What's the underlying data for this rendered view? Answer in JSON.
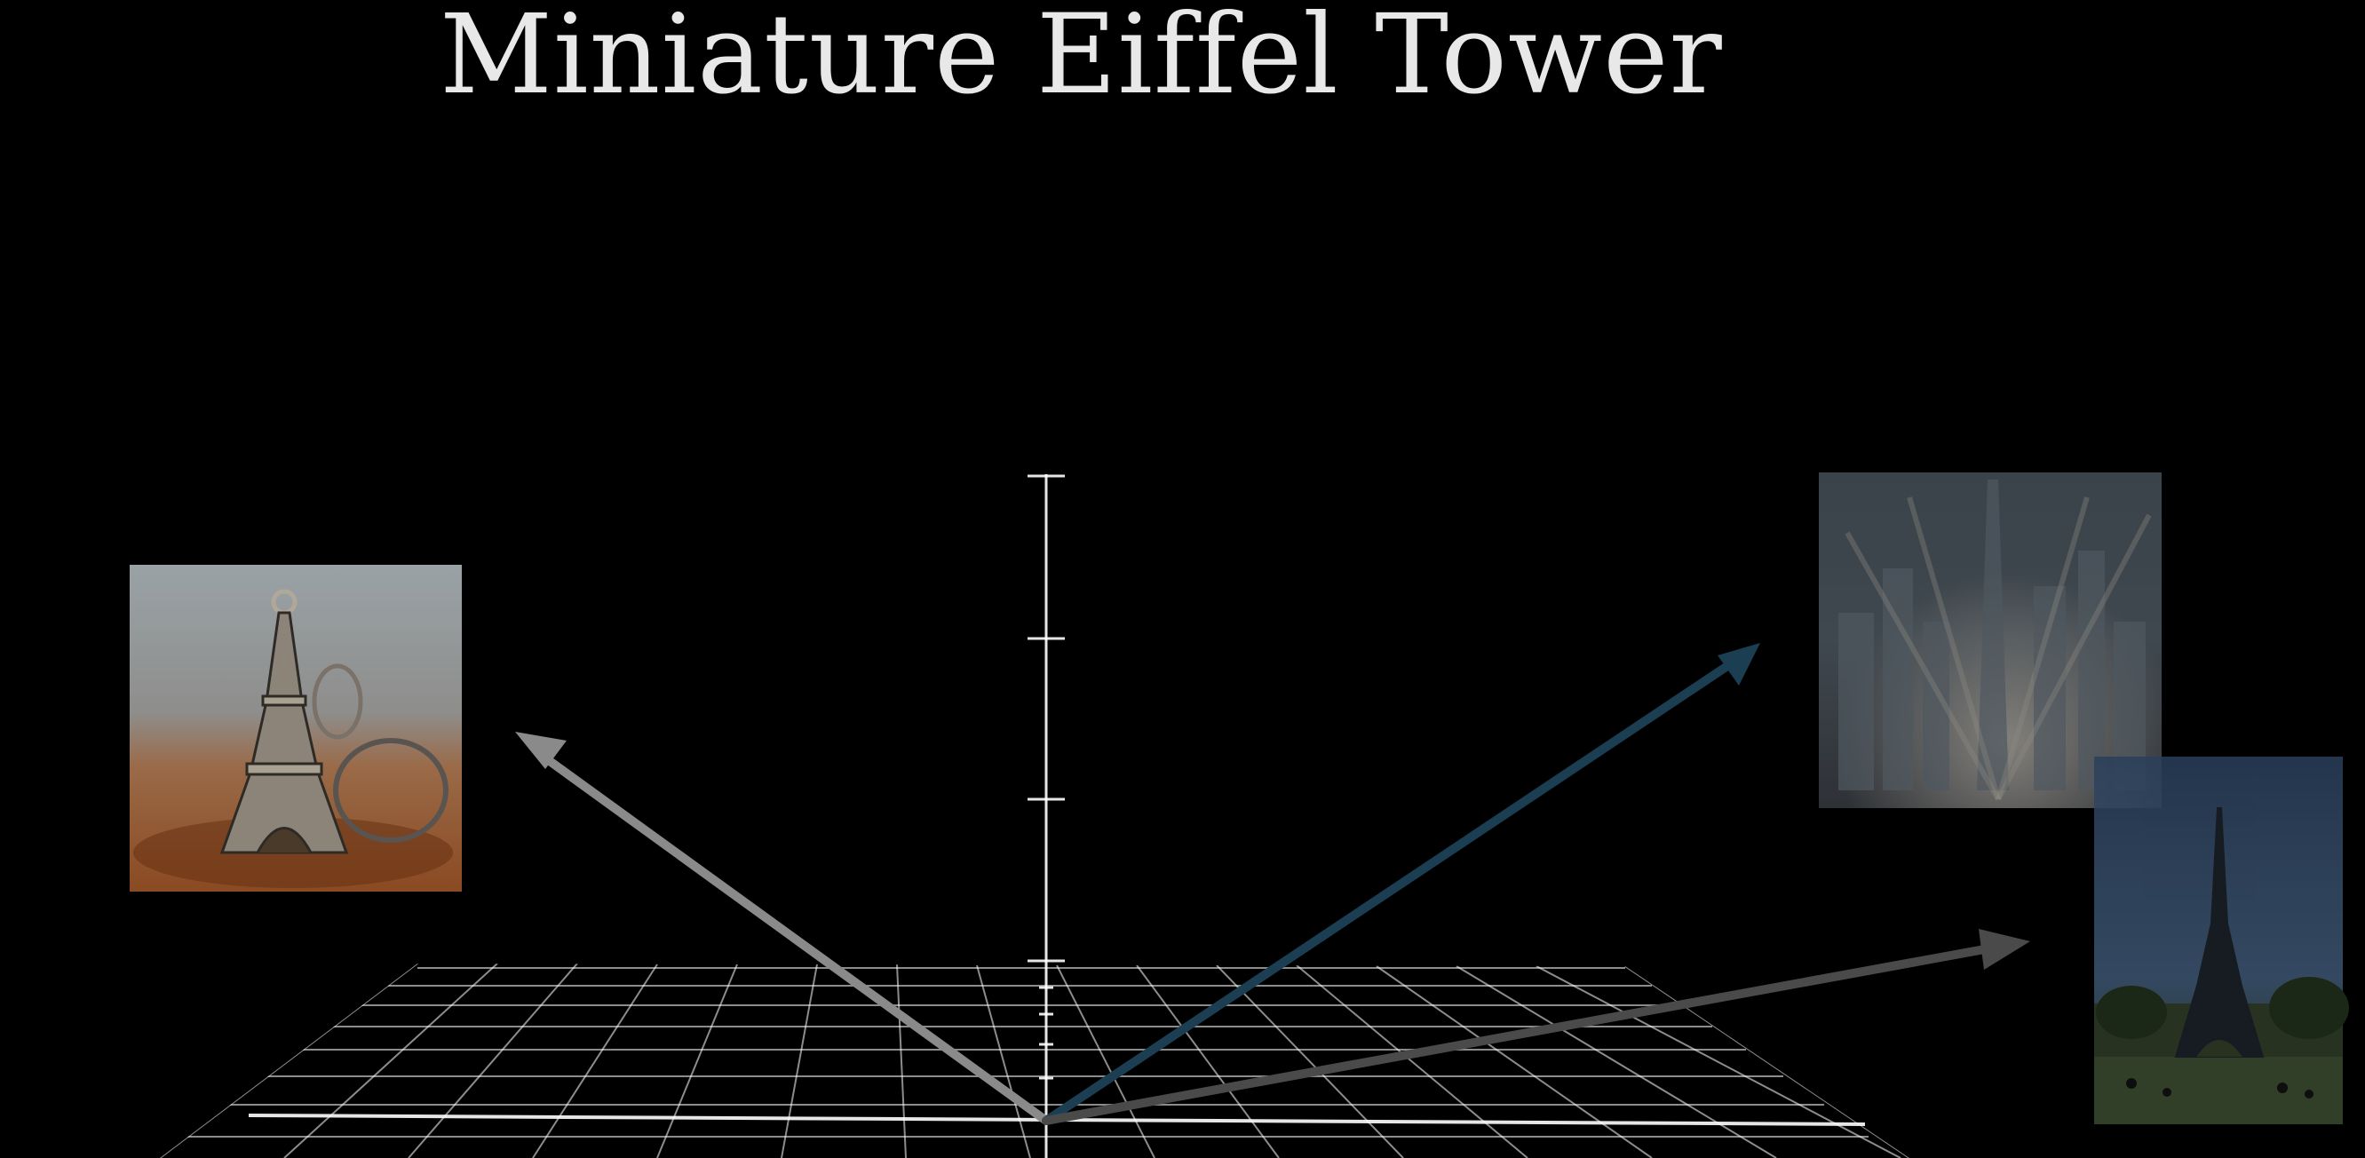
{
  "scene": {
    "title": "Miniature Eiffel Tower",
    "colors": {
      "background": "#000000",
      "grid": "#ffffff",
      "axis": "#ffffff",
      "query_arrow": "#8a8a8a",
      "blue_arrow": "#1c3e52",
      "grey_arrow": "#4a4a4a"
    },
    "images": [
      {
        "name": "keychain-photo",
        "content": "miniature eiffel tower keychain on wooden table"
      },
      {
        "name": "city-photo",
        "content": "blurred city skyline with tall tower"
      },
      {
        "name": "eiffel-tower-photo",
        "content": "eiffel tower in park under blue sky"
      }
    ]
  }
}
